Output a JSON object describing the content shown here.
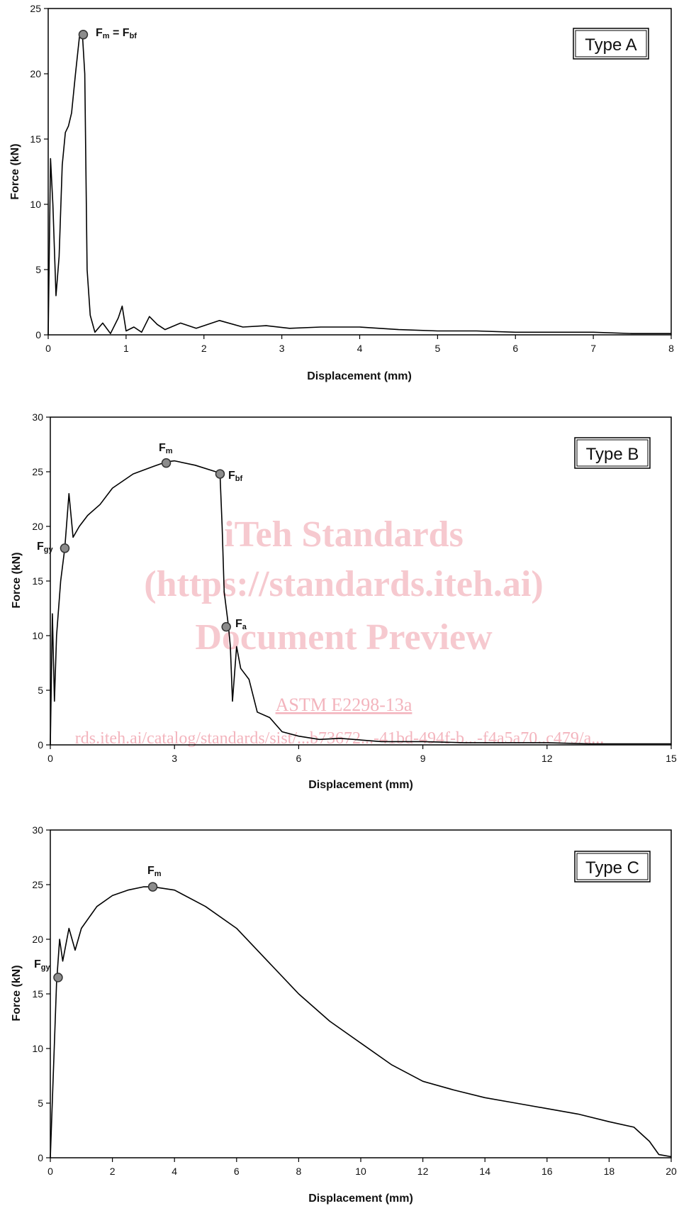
{
  "watermark": {
    "line1": "iTeh Standards",
    "line2": "(https://standards.iteh.ai)",
    "line3": "Document Preview",
    "std": "ASTM E2298-13a",
    "url": "rds.iteh.ai/catalog/standards/sist/...b73672...-41bd-494f-b...-f4a5a70..c479/a..."
  },
  "chart_data": [
    {
      "type": "line",
      "box_label": "Type A",
      "xlabel": "Displacement (mm)",
      "ylabel": "Force (kN)",
      "xlim": [
        0,
        8
      ],
      "ylim": [
        0,
        25
      ],
      "xticks": [
        0,
        1,
        2,
        3,
        4,
        5,
        6,
        7,
        8
      ],
      "yticks": [
        0,
        5,
        10,
        15,
        20,
        25
      ],
      "x": [
        0,
        0.03,
        0.06,
        0.1,
        0.14,
        0.18,
        0.22,
        0.26,
        0.3,
        0.35,
        0.4,
        0.44,
        0.47,
        0.5,
        0.54,
        0.6,
        0.7,
        0.8,
        0.9,
        0.95,
        1.0,
        1.1,
        1.2,
        1.3,
        1.4,
        1.5,
        1.7,
        1.9,
        2.2,
        2.5,
        2.8,
        3.1,
        3.5,
        4.0,
        4.5,
        5.0,
        5.5,
        6.0,
        6.5,
        7.0,
        7.5,
        8.0
      ],
      "values": [
        0,
        13.5,
        10,
        3,
        6,
        13,
        15.5,
        16,
        17,
        20,
        22.8,
        23,
        20,
        5,
        1.5,
        0.2,
        0.9,
        0.1,
        1.3,
        2.2,
        0.3,
        0.6,
        0.2,
        1.4,
        0.8,
        0.4,
        0.9,
        0.5,
        1.1,
        0.6,
        0.7,
        0.5,
        0.6,
        0.6,
        0.4,
        0.3,
        0.3,
        0.2,
        0.2,
        0.2,
        0.1,
        0.1
      ],
      "annotations": [
        {
          "x": 0.45,
          "y": 23,
          "label": "Fm = Fbf"
        }
      ]
    },
    {
      "type": "line",
      "box_label": "Type B",
      "xlabel": "Displacement (mm)",
      "ylabel": "Force (kN)",
      "xlim": [
        0,
        15
      ],
      "ylim": [
        0,
        30
      ],
      "xticks": [
        0,
        3,
        6,
        9,
        12,
        15
      ],
      "yticks": [
        0,
        5,
        10,
        15,
        20,
        25,
        30
      ],
      "x": [
        0,
        0.05,
        0.1,
        0.15,
        0.25,
        0.35,
        0.45,
        0.55,
        0.7,
        0.9,
        1.2,
        1.5,
        2.0,
        2.5,
        2.8,
        3.0,
        3.5,
        4.0,
        4.1,
        4.15,
        4.2,
        4.3,
        4.35,
        4.4,
        4.5,
        4.6,
        4.8,
        5.0,
        5.3,
        5.6,
        6.0,
        6.5,
        7.0,
        8.0,
        9.0,
        10.0,
        11.0,
        12.0,
        13.0,
        14.0,
        15.0
      ],
      "values": [
        0,
        12,
        4,
        10,
        15,
        18,
        23,
        19,
        20,
        21,
        22,
        23.5,
        24.8,
        25.5,
        25.9,
        26,
        25.6,
        25,
        24.8,
        20,
        14,
        11,
        9,
        4,
        9,
        7,
        6,
        3,
        2.5,
        1.2,
        0.8,
        0.5,
        0.6,
        0.3,
        0.3,
        0.2,
        0.2,
        0.2,
        0.1,
        0.1,
        0.1
      ],
      "annotations": [
        {
          "x": 2.8,
          "y": 25.8,
          "label": "Fm"
        },
        {
          "x": 4.1,
          "y": 24.8,
          "label": "Fbf"
        },
        {
          "x": 0.35,
          "y": 18,
          "label": "Fgy"
        },
        {
          "x": 4.25,
          "y": 10.8,
          "label": "Fa"
        }
      ]
    },
    {
      "type": "line",
      "box_label": "Type C",
      "xlabel": "Displacement (mm)",
      "ylabel": "Force (kN)",
      "xlim": [
        0,
        20
      ],
      "ylim": [
        0,
        30
      ],
      "xticks": [
        0,
        2,
        4,
        6,
        8,
        10,
        12,
        14,
        16,
        18,
        20
      ],
      "yticks": [
        0,
        5,
        10,
        15,
        20,
        25,
        30
      ],
      "x": [
        0,
        0.1,
        0.2,
        0.3,
        0.4,
        0.6,
        0.8,
        1.0,
        1.5,
        2.0,
        2.5,
        3.0,
        3.3,
        4.0,
        5.0,
        6.0,
        7.0,
        8.0,
        9.0,
        10.0,
        11.0,
        12.0,
        13.0,
        14.0,
        15.0,
        16.0,
        17.0,
        18.0,
        18.8,
        19.3,
        19.6,
        20.0
      ],
      "values": [
        0,
        8,
        16,
        20,
        18,
        21,
        19,
        21,
        23,
        24,
        24.5,
        24.8,
        24.8,
        24.5,
        23,
        21,
        18,
        15,
        12.5,
        10.5,
        8.5,
        7,
        6.2,
        5.5,
        5,
        4.5,
        4,
        3.3,
        2.8,
        1.5,
        0.3,
        0.1
      ],
      "annotations": [
        {
          "x": 3.3,
          "y": 24.8,
          "label": "Fm"
        },
        {
          "x": 0.25,
          "y": 16.5,
          "label": "Fgy"
        }
      ]
    }
  ]
}
